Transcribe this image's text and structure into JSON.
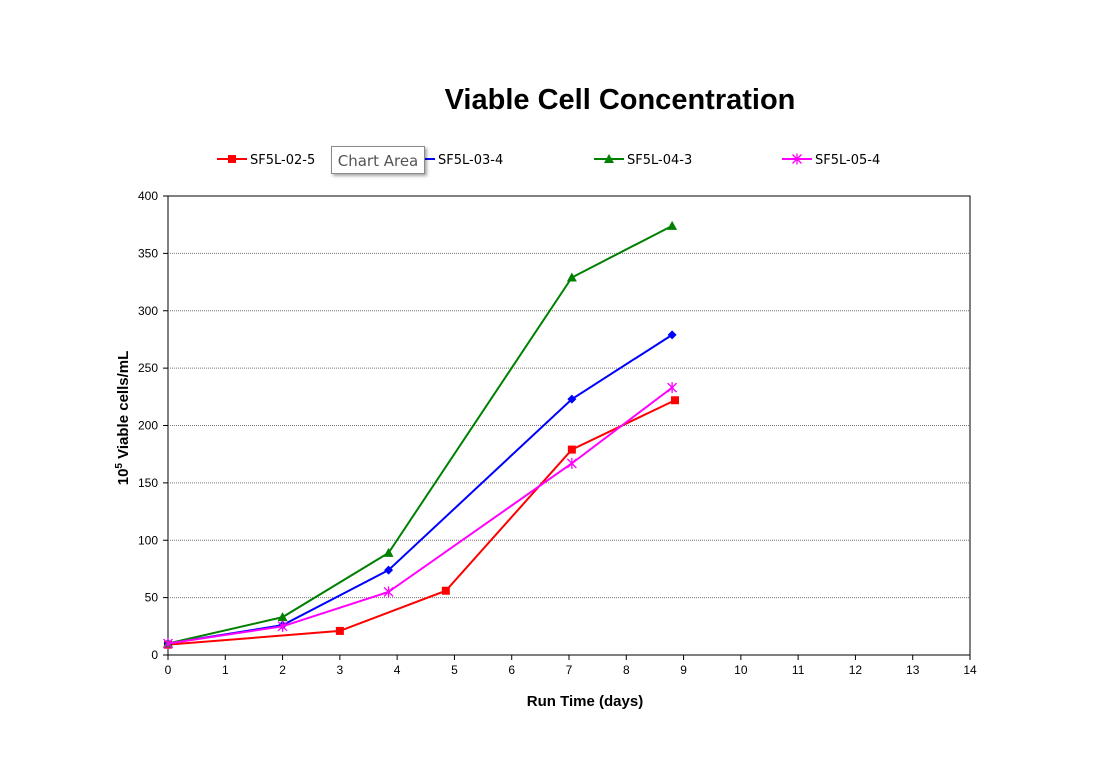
{
  "chart_data": {
    "type": "line",
    "title": "Viable Cell Concentration",
    "xlabel": "Run Time (days)",
    "ylabel_base": "10",
    "ylabel_exp": "5",
    "ylabel_rest": " Viable cells/mL",
    "xlim": [
      0,
      14
    ],
    "ylim": [
      0,
      400
    ],
    "x_ticks": [
      0,
      1,
      2,
      3,
      4,
      5,
      6,
      7,
      8,
      9,
      10,
      11,
      12,
      13,
      14
    ],
    "y_ticks": [
      0,
      50,
      100,
      150,
      200,
      250,
      300,
      350,
      400
    ],
    "grid": "horizontal dotted",
    "legend_position": "top",
    "series": [
      {
        "name": "SF5L-02-5",
        "color": "#ff0000",
        "marker": "square",
        "x": [
          0,
          3,
          4.85,
          7.05,
          8.85
        ],
        "y": [
          9,
          21,
          56,
          179,
          222
        ]
      },
      {
        "name": "SF5L-03-4",
        "color": "#0000ff",
        "marker": "diamond",
        "x": [
          0,
          2,
          3.85,
          7.05,
          8.8
        ],
        "y": [
          10,
          26,
          74,
          223,
          279
        ]
      },
      {
        "name": "SF5L-04-3",
        "color": "#008000",
        "marker": "triangle",
        "x": [
          0,
          2,
          3.85,
          7.05,
          8.8
        ],
        "y": [
          10,
          33,
          89,
          329,
          374
        ]
      },
      {
        "name": "SF5L-05-4",
        "color": "#ff00ff",
        "marker": "star",
        "x": [
          0,
          2,
          3.85,
          7.05,
          8.8
        ],
        "y": [
          10,
          25,
          55,
          167,
          233
        ]
      }
    ]
  },
  "tooltip": {
    "text": "Chart Area"
  }
}
